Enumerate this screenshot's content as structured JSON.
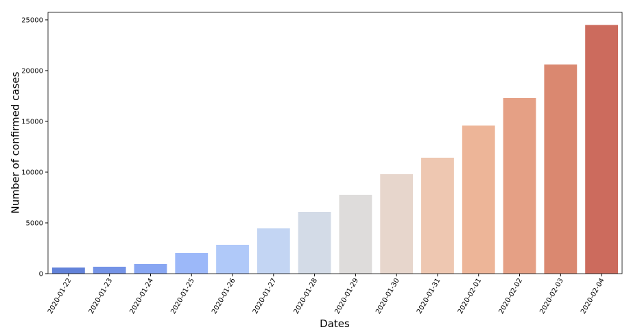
{
  "chart_data": {
    "type": "bar",
    "x_label": "Dates",
    "y_label": "Number of confirmed cases",
    "categories": [
      "2020-01-22",
      "2020-01-23",
      "2020-01-24",
      "2020-01-25",
      "2020-01-26",
      "2020-01-27",
      "2020-01-28",
      "2020-01-29",
      "2020-01-30",
      "2020-01-31",
      "2020-02-01",
      "2020-02-02",
      "2020-02-03",
      "2020-02-04"
    ],
    "values": [
      600,
      680,
      950,
      2030,
      2840,
      4460,
      6080,
      7770,
      9800,
      11420,
      14590,
      17300,
      20600,
      24500
    ],
    "colors": [
      "#6282d9",
      "#7493e6",
      "#88a6f2",
      "#9cb8f9",
      "#b0c9f9",
      "#c3d5f3",
      "#d3dbe7",
      "#dedcdb",
      "#e7d6cc",
      "#eec7b1",
      "#edb598",
      "#e5a085",
      "#da8870",
      "#cc6b5d"
    ],
    "ylim": [
      0,
      25740
    ],
    "yticks": [
      0,
      5000,
      10000,
      15000,
      20000,
      25000
    ],
    "grid": false
  }
}
